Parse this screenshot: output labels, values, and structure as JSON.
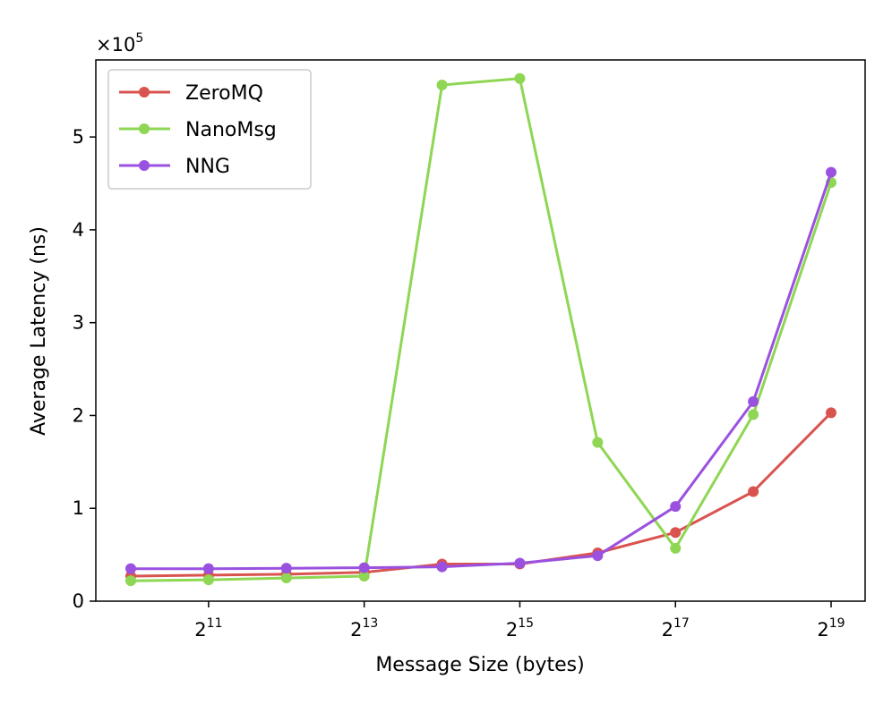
{
  "chart_data": {
    "type": "line",
    "x": [
      1024,
      2048,
      4096,
      8192,
      16384,
      32768,
      65536,
      131072,
      262144,
      524288
    ],
    "xscale": "log2",
    "xlim": [
      1024,
      524288
    ],
    "xticks": [
      {
        "base": "2",
        "exp": "11",
        "value": 2048
      },
      {
        "base": "2",
        "exp": "13",
        "value": 8192
      },
      {
        "base": "2",
        "exp": "15",
        "value": 32768
      },
      {
        "base": "2",
        "exp": "17",
        "value": 131072
      },
      {
        "base": "2",
        "exp": "19",
        "value": 524288
      }
    ],
    "yticks": [
      {
        "label": "0",
        "value": 0
      },
      {
        "label": "1",
        "value": 100000
      },
      {
        "label": "2",
        "value": 200000
      },
      {
        "label": "3",
        "value": 300000
      },
      {
        "label": "4",
        "value": 400000
      },
      {
        "label": "5",
        "value": 500000
      }
    ],
    "ylim": [
      0,
      583000
    ],
    "y_multiplier": {
      "base": "×10",
      "exp": "5"
    },
    "xlabel": "Message Size (bytes)",
    "ylabel": "Average Latency (ns)",
    "grid": false,
    "legend_position": "top-left",
    "series": [
      {
        "name": "ZeroMQ",
        "color": "#d9534f",
        "values": [
          27000,
          28000,
          29000,
          31000,
          40000,
          40000,
          52000,
          74000,
          118000,
          203000
        ]
      },
      {
        "name": "NanoMsg",
        "color": "#8ed653",
        "values": [
          22000,
          23000,
          25000,
          27000,
          556000,
          563000,
          171000,
          57000,
          201000,
          451000
        ]
      },
      {
        "name": "NNG",
        "color": "#9b51e0",
        "values": [
          35000,
          35000,
          35500,
          36000,
          37000,
          41000,
          49000,
          102000,
          215000,
          462000
        ]
      }
    ]
  }
}
